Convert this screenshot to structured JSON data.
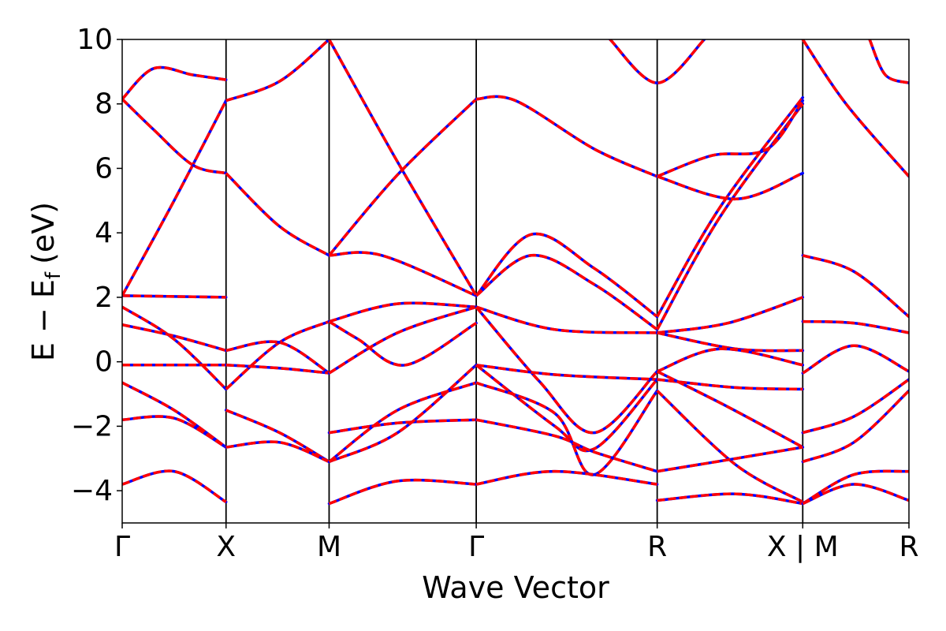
{
  "chart_data": {
    "type": "line",
    "xlabel": "Wave Vector",
    "ylabel_parts": {
      "main": "E − E",
      "sub": "f",
      "unit": "(eV)"
    },
    "ylim": [
      -5,
      10
    ],
    "xlim": [
      0,
      1
    ],
    "yticks": [
      -4,
      -2,
      0,
      2,
      4,
      6,
      8,
      10
    ],
    "ytick_labels": [
      "−4",
      "−2",
      "0",
      "2",
      "4",
      "6",
      "8",
      "10"
    ],
    "kpoints": [
      {
        "label": "Γ",
        "x": 0.0
      },
      {
        "label": "X",
        "x": 0.132
      },
      {
        "label": "M",
        "x": 0.263
      },
      {
        "label": "Γ",
        "x": 0.45
      },
      {
        "label": "R",
        "x": 0.68
      },
      {
        "label": "X | M",
        "x": 0.865
      },
      {
        "label": "R",
        "x": 1.0
      }
    ],
    "series_colors": {
      "primary": "#0000ff",
      "overlay": "#ff0000"
    },
    "series": [
      {
        "role": "band",
        "points": [
          [
            0,
            2.05
          ],
          [
            0.132,
            2.0
          ]
        ]
      },
      {
        "role": "band",
        "points": [
          [
            0,
            2.05
          ],
          [
            0.066,
            5.0
          ],
          [
            0.132,
            8.1
          ]
        ]
      },
      {
        "role": "band",
        "points": [
          [
            0,
            8.15
          ],
          [
            0.04,
            9.1
          ],
          [
            0.09,
            8.9
          ],
          [
            0.132,
            8.75
          ]
        ]
      },
      {
        "role": "band",
        "points": [
          [
            0,
            8.15
          ],
          [
            0.04,
            7.2
          ],
          [
            0.09,
            6.1
          ],
          [
            0.132,
            5.85
          ]
        ]
      },
      {
        "role": "band",
        "points": [
          [
            0.132,
            8.1
          ],
          [
            0.2,
            8.7
          ],
          [
            0.263,
            10.0
          ]
        ]
      },
      {
        "role": "band",
        "points": [
          [
            0.132,
            5.85
          ],
          [
            0.2,
            4.2
          ],
          [
            0.263,
            3.3
          ]
        ]
      },
      {
        "role": "band",
        "points": [
          [
            0.263,
            3.3
          ],
          [
            0.35,
            5.8
          ],
          [
            0.45,
            8.15
          ]
        ]
      },
      {
        "role": "band",
        "points": [
          [
            0.263,
            3.3
          ],
          [
            0.33,
            3.3
          ],
          [
            0.45,
            2.05
          ]
        ]
      },
      {
        "role": "band",
        "points": [
          [
            0.263,
            10.0
          ],
          [
            0.35,
            6.2
          ],
          [
            0.45,
            2.05
          ]
        ]
      },
      {
        "role": "band",
        "points": [
          [
            0.45,
            8.15
          ],
          [
            0.5,
            8.1
          ],
          [
            0.6,
            6.6
          ],
          [
            0.68,
            5.75
          ]
        ]
      },
      {
        "role": "band",
        "points": [
          [
            0.45,
            2.05
          ],
          [
            0.52,
            3.95
          ],
          [
            0.6,
            2.9
          ],
          [
            0.68,
            1.4
          ]
        ]
      },
      {
        "role": "band",
        "points": [
          [
            0.45,
            2.05
          ],
          [
            0.52,
            3.3
          ],
          [
            0.6,
            2.4
          ],
          [
            0.68,
            1.0
          ]
        ]
      },
      {
        "role": "band",
        "points": [
          [
            0.68,
            1.4
          ],
          [
            0.76,
            4.8
          ],
          [
            0.865,
            8.2
          ]
        ]
      },
      {
        "role": "band",
        "points": [
          [
            0.68,
            1.0
          ],
          [
            0.76,
            4.5
          ],
          [
            0.865,
            8.0
          ]
        ]
      },
      {
        "role": "band",
        "points": [
          [
            0.68,
            5.75
          ],
          [
            0.75,
            6.4
          ],
          [
            0.82,
            6.6
          ],
          [
            0.865,
            8.1
          ]
        ]
      },
      {
        "role": "band",
        "points": [
          [
            0.68,
            5.75
          ],
          [
            0.78,
            5.05
          ],
          [
            0.865,
            5.85
          ]
        ]
      },
      {
        "role": "band",
        "points": [
          [
            0.62,
            10.0
          ],
          [
            0.68,
            8.65
          ],
          [
            0.74,
            10.0
          ]
        ]
      },
      {
        "role": "band",
        "points": [
          [
            0.865,
            10.0
          ],
          [
            0.92,
            8.0
          ],
          [
            1.0,
            5.75
          ]
        ]
      },
      {
        "role": "band",
        "points": [
          [
            0.95,
            10.0
          ],
          [
            0.97,
            8.9
          ],
          [
            1.0,
            8.65
          ]
        ]
      },
      {
        "role": "band",
        "points": [
          [
            0.865,
            3.3
          ],
          [
            0.93,
            2.8
          ],
          [
            1.0,
            1.4
          ]
        ]
      },
      {
        "role": "band",
        "points": [
          [
            0,
            1.7
          ],
          [
            0.066,
            0.7
          ],
          [
            0.132,
            -0.85
          ]
        ]
      },
      {
        "role": "band",
        "points": [
          [
            0,
            1.15
          ],
          [
            0.066,
            0.8
          ],
          [
            0.132,
            0.35
          ]
        ]
      },
      {
        "role": "band",
        "points": [
          [
            0,
            -0.1
          ],
          [
            0.132,
            -0.1
          ]
        ]
      },
      {
        "role": "band",
        "points": [
          [
            0,
            -0.65
          ],
          [
            0.066,
            -1.5
          ],
          [
            0.132,
            -2.65
          ]
        ]
      },
      {
        "role": "band",
        "points": [
          [
            0,
            -1.8
          ],
          [
            0.066,
            -1.75
          ],
          [
            0.132,
            -2.65
          ]
        ]
      },
      {
        "role": "band",
        "points": [
          [
            0,
            -3.8
          ],
          [
            0.066,
            -3.4
          ],
          [
            0.132,
            -4.35
          ]
        ]
      },
      {
        "role": "band",
        "points": [
          [
            0.132,
            -0.85
          ],
          [
            0.2,
            0.6
          ],
          [
            0.263,
            1.25
          ]
        ]
      },
      {
        "role": "band",
        "points": [
          [
            0.132,
            0.35
          ],
          [
            0.2,
            0.6
          ],
          [
            0.263,
            -0.35
          ]
        ]
      },
      {
        "role": "band",
        "points": [
          [
            0.132,
            -0.1
          ],
          [
            0.2,
            -0.2
          ],
          [
            0.263,
            -0.35
          ]
        ]
      },
      {
        "role": "band",
        "points": [
          [
            0.132,
            -1.5
          ],
          [
            0.2,
            -2.2
          ],
          [
            0.263,
            -3.1
          ]
        ]
      },
      {
        "role": "band",
        "points": [
          [
            0.132,
            -2.65
          ],
          [
            0.2,
            -2.5
          ],
          [
            0.263,
            -3.1
          ]
        ]
      },
      {
        "role": "band",
        "points": [
          [
            0.263,
            1.25
          ],
          [
            0.35,
            1.8
          ],
          [
            0.45,
            1.7
          ]
        ]
      },
      {
        "role": "band",
        "points": [
          [
            0.263,
            1.25
          ],
          [
            0.3,
            0.7
          ],
          [
            0.36,
            -0.1
          ],
          [
            0.45,
            1.2
          ]
        ]
      },
      {
        "role": "band",
        "points": [
          [
            0.263,
            -0.35
          ],
          [
            0.35,
            0.9
          ],
          [
            0.45,
            1.7
          ]
        ]
      },
      {
        "role": "band",
        "points": [
          [
            0.263,
            -2.2
          ],
          [
            0.35,
            -1.9
          ],
          [
            0.45,
            -1.8
          ]
        ]
      },
      {
        "role": "band",
        "points": [
          [
            0.263,
            -3.1
          ],
          [
            0.35,
            -2.2
          ],
          [
            0.45,
            -0.1
          ]
        ]
      },
      {
        "role": "band",
        "points": [
          [
            0.263,
            -3.1
          ],
          [
            0.35,
            -1.5
          ],
          [
            0.45,
            -0.65
          ]
        ]
      },
      {
        "role": "band",
        "points": [
          [
            0.263,
            -4.4
          ],
          [
            0.35,
            -3.7
          ],
          [
            0.45,
            -3.8
          ]
        ]
      },
      {
        "role": "band",
        "points": [
          [
            0.45,
            1.7
          ],
          [
            0.55,
            1.0
          ],
          [
            0.68,
            0.9
          ]
        ]
      },
      {
        "role": "band",
        "points": [
          [
            0.45,
            1.7
          ],
          [
            0.53,
            -0.6
          ],
          [
            0.6,
            -2.2
          ],
          [
            0.68,
            -0.3
          ]
        ]
      },
      {
        "role": "band",
        "points": [
          [
            0.45,
            -0.1
          ],
          [
            0.55,
            -0.4
          ],
          [
            0.68,
            -0.55
          ]
        ]
      },
      {
        "role": "band",
        "points": [
          [
            0.45,
            -0.1
          ],
          [
            0.55,
            -2.0
          ],
          [
            0.6,
            -2.7
          ],
          [
            0.68,
            -0.55
          ]
        ]
      },
      {
        "role": "band",
        "points": [
          [
            0.45,
            -0.65
          ],
          [
            0.55,
            -1.6
          ],
          [
            0.6,
            -3.5
          ],
          [
            0.68,
            -0.9
          ]
        ]
      },
      {
        "role": "band",
        "points": [
          [
            0.45,
            -1.8
          ],
          [
            0.55,
            -2.3
          ],
          [
            0.6,
            -2.8
          ],
          [
            0.68,
            -3.4
          ]
        ]
      },
      {
        "role": "band",
        "points": [
          [
            0.45,
            -3.8
          ],
          [
            0.55,
            -3.4
          ],
          [
            0.68,
            -3.8
          ]
        ]
      },
      {
        "role": "band",
        "points": [
          [
            0.68,
            0.9
          ],
          [
            0.77,
            1.2
          ],
          [
            0.865,
            2.0
          ]
        ]
      },
      {
        "role": "band",
        "points": [
          [
            0.68,
            0.9
          ],
          [
            0.78,
            0.4
          ],
          [
            0.865,
            0.35
          ]
        ]
      },
      {
        "role": "band",
        "points": [
          [
            0.68,
            -0.3
          ],
          [
            0.76,
            0.4
          ],
          [
            0.865,
            -0.1
          ]
        ]
      },
      {
        "role": "band",
        "points": [
          [
            0.68,
            -0.55
          ],
          [
            0.78,
            -0.8
          ],
          [
            0.865,
            -0.85
          ]
        ]
      },
      {
        "role": "band",
        "points": [
          [
            0.68,
            -0.3
          ],
          [
            0.77,
            -1.4
          ],
          [
            0.865,
            -2.65
          ]
        ]
      },
      {
        "role": "band",
        "points": [
          [
            0.68,
            -0.9
          ],
          [
            0.78,
            -3.2
          ],
          [
            0.865,
            -4.35
          ]
        ]
      },
      {
        "role": "band",
        "points": [
          [
            0.68,
            -3.4
          ],
          [
            0.78,
            -3.0
          ],
          [
            0.865,
            -2.65
          ]
        ]
      },
      {
        "role": "band",
        "points": [
          [
            0.68,
            -4.3
          ],
          [
            0.78,
            -4.1
          ],
          [
            0.865,
            -4.4
          ]
        ]
      },
      {
        "role": "band",
        "points": [
          [
            0.865,
            1.25
          ],
          [
            0.93,
            1.2
          ],
          [
            1.0,
            0.9
          ]
        ]
      },
      {
        "role": "band",
        "points": [
          [
            0.865,
            -0.35
          ],
          [
            0.93,
            0.5
          ],
          [
            1.0,
            -0.3
          ]
        ]
      },
      {
        "role": "band",
        "points": [
          [
            0.865,
            -2.2
          ],
          [
            0.93,
            -1.7
          ],
          [
            1.0,
            -0.55
          ]
        ]
      },
      {
        "role": "band",
        "points": [
          [
            0.865,
            -3.1
          ],
          [
            0.93,
            -2.5
          ],
          [
            1.0,
            -0.9
          ]
        ]
      },
      {
        "role": "band",
        "points": [
          [
            0.865,
            -4.4
          ],
          [
            0.93,
            -3.5
          ],
          [
            1.0,
            -3.4
          ]
        ]
      },
      {
        "role": "band",
        "points": [
          [
            0.865,
            -4.4
          ],
          [
            0.93,
            -3.8
          ],
          [
            1.0,
            -4.3
          ]
        ]
      }
    ]
  }
}
